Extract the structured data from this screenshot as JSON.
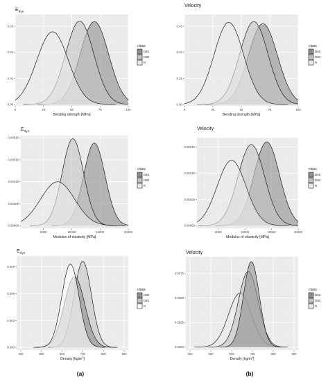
{
  "captions": [
    "(a)",
    "(b)"
  ],
  "chart_data": [
    {
      "type": "area",
      "title": "E",
      "title_sub": "dyn",
      "xlabel": "Bending strength [MPa]",
      "ylabel": "",
      "xlim": [
        0,
        100
      ],
      "ylim": [
        -0.0005,
        0.0345
      ],
      "x_ticks": [
        0,
        25,
        50,
        75,
        100
      ],
      "x_tick_labels": [
        "0",
        "25",
        "50",
        "75",
        "100"
      ],
      "y_ticks": [
        0,
        0.01,
        0.02,
        0.03
      ],
      "y_tick_labels": [
        "0.00",
        "0.01",
        "0.02",
        "0.03"
      ],
      "legend_title": "class",
      "legend_entries": [
        "D45",
        "D30",
        "R"
      ],
      "legend_placement": "right",
      "grid": true,
      "series": [
        {
          "name": "D45",
          "color": "#8f8f8f",
          "mean": 70,
          "sd": 12.6,
          "peak": 0.0318
        },
        {
          "name": "D30",
          "color": "#c4c4c4",
          "mean": 57,
          "sd": 12.5,
          "peak": 0.032
        },
        {
          "name": "R",
          "color": "#ebebeb",
          "mean": 33,
          "sd": 14,
          "peak": 0.0279
        }
      ]
    },
    {
      "type": "area",
      "title": "Velocity",
      "title_sub": "",
      "xlabel": "Bending strength [MPa]",
      "ylabel": "",
      "xlim": [
        0,
        100
      ],
      "ylim": [
        -0.0005,
        0.0345
      ],
      "x_ticks": [
        0,
        25,
        50,
        75,
        100
      ],
      "x_tick_labels": [
        "0",
        "25",
        "50",
        "75",
        "100"
      ],
      "y_ticks": [
        0,
        0.01,
        0.02,
        0.03
      ],
      "y_tick_labels": [
        "0.00",
        "0.01",
        "0.02",
        "0.03"
      ],
      "legend_title": "class",
      "legend_entries": [
        "D45",
        "D30",
        "R"
      ],
      "legend_placement": "right",
      "grid": true,
      "series": [
        {
          "name": "D45",
          "color": "#8f8f8f",
          "mean": 69,
          "sd": 12.8,
          "peak": 0.031
        },
        {
          "name": "D30",
          "color": "#c4c4c4",
          "mean": 61,
          "sd": 12.5,
          "peak": 0.0318
        },
        {
          "name": "R",
          "color": "#ebebeb",
          "mean": 39,
          "sd": 13,
          "peak": 0.0315
        }
      ]
    },
    {
      "type": "area",
      "title": "E",
      "title_sub": "dyn",
      "xlabel": "Modulus of elasticity [MPa]",
      "ylabel": "",
      "xlim": [
        1000,
        20000
      ],
      "ylim": [
        -6e-06,
        0.000205
      ],
      "x_ticks": [
        5000,
        10000,
        15000,
        20000
      ],
      "x_tick_labels": [
        "5000",
        "10000",
        "15000",
        "20000"
      ],
      "y_ticks": [
        0,
        5e-05,
        0.0001,
        0.00015,
        0.0002
      ],
      "y_tick_labels": [
        "0.00000",
        "0.00005",
        "0.00010",
        "0.00015",
        "0.00020"
      ],
      "legend_title": "class",
      "legend_entries": [
        "D45",
        "D30",
        "R"
      ],
      "legend_placement": "right",
      "grid": true,
      "series": [
        {
          "name": "D45",
          "color": "#8f8f8f",
          "mean": 14000,
          "sd": 1900,
          "peak": 0.000188
        },
        {
          "name": "D30",
          "color": "#c4c4c4",
          "mean": 10200,
          "sd": 1900,
          "peak": 0.000198
        },
        {
          "name": "R",
          "color": "#ebebeb",
          "mean": 7500,
          "sd": 3000,
          "peak": 0.0001
        }
      ]
    },
    {
      "type": "area",
      "title": "Velocity",
      "title_sub": "",
      "xlabel": "Modulus of elasticity [MPa]",
      "ylabel": "",
      "xlim": [
        1000,
        20000
      ],
      "ylim": [
        -5e-06,
        0.000168
      ],
      "x_ticks": [
        5000,
        10000,
        15000,
        20000
      ],
      "x_tick_labels": [
        "5000",
        "10000",
        "15000",
        "20000"
      ],
      "y_ticks": [
        0,
        5e-05,
        0.0001,
        0.00015
      ],
      "y_tick_labels": [
        "0.00000",
        "0.00005",
        "0.00010",
        "0.00015"
      ],
      "legend_title": "class",
      "legend_entries": [
        "D45",
        "D30",
        "R"
      ],
      "legend_placement": "right",
      "grid": true,
      "series": [
        {
          "name": "D45",
          "color": "#8f8f8f",
          "mean": 14100,
          "sd": 2400,
          "peak": 0.00016
        },
        {
          "name": "D30",
          "color": "#c4c4c4",
          "mean": 11200,
          "sd": 2500,
          "peak": 0.000155
        },
        {
          "name": "R",
          "color": "#ebebeb",
          "mean": 7500,
          "sd": 2700,
          "peak": 0.000125
        }
      ]
    },
    {
      "type": "area",
      "title": "E",
      "title_sub": "dyn",
      "xlabel": "Density [kg/m",
      "xlabel_sup": "3",
      "xlabel_end": "]",
      "ylabel": "",
      "xlim": [
        380,
        920
      ],
      "ylim": [
        -0.0003,
        0.0102
      ],
      "x_ticks": [
        400,
        500,
        600,
        700,
        800,
        900
      ],
      "x_tick_labels": [
        "400",
        "500",
        "600",
        "700",
        "800",
        "900"
      ],
      "y_ticks": [
        0,
        0.003,
        0.006,
        0.009
      ],
      "y_tick_labels": [
        "0.000",
        "0.003",
        "0.006",
        "0.009"
      ],
      "legend_title": "class",
      "legend_entries": [
        "D30",
        "D45",
        "R"
      ],
      "legend_placement": "right",
      "grid": true,
      "series": [
        {
          "name": "D45",
          "color": "#c4c4c4",
          "mean": 700,
          "sd": 42,
          "peak": 0.0096
        },
        {
          "name": "D30",
          "color": "#8f8f8f",
          "mean": 660,
          "sd": 50,
          "peak": 0.0079
        },
        {
          "name": "R",
          "color": "#ffffff",
          "mean": 640,
          "sd": 42,
          "peak": 0.0093
        }
      ]
    },
    {
      "type": "area",
      "title": "Velocity",
      "title_sub": "",
      "xlabel": "Density [kg/m",
      "xlabel_sup": "3",
      "xlabel_end": "]",
      "ylabel": "",
      "xlim": [
        380,
        920
      ],
      "ylim": [
        -0.0003,
        0.0092
      ],
      "x_ticks": [
        400,
        500,
        600,
        700,
        800,
        900
      ],
      "x_tick_labels": [
        "400",
        "500",
        "600",
        "700",
        "800",
        "900"
      ],
      "y_ticks": [
        0,
        0.0025,
        0.005,
        0.0075
      ],
      "y_tick_labels": [
        "0.0000",
        "0.0025",
        "0.0050",
        "0.0075"
      ],
      "legend_title": "class",
      "legend_entries": [
        "D45",
        "D30",
        "R"
      ],
      "legend_placement": "right",
      "grid": true,
      "series": [
        {
          "name": "R",
          "color": "#ebebeb",
          "mean": 640,
          "sd": 55,
          "peak": 0.0055
        },
        {
          "name": "D30",
          "color": "#c4c4c4",
          "mean": 680,
          "sd": 48,
          "peak": 0.0077
        },
        {
          "name": "D45",
          "color": "#8f8f8f",
          "mean": 695,
          "sd": 38,
          "peak": 0.0087
        }
      ]
    }
  ]
}
